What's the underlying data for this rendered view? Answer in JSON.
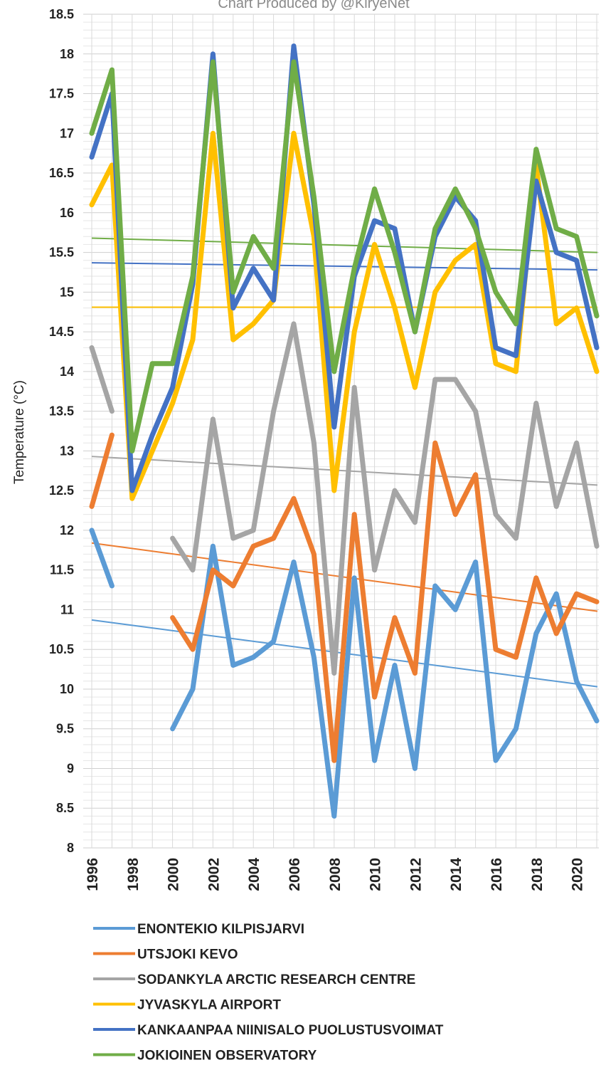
{
  "chart_data": {
    "type": "line",
    "title": "Chart Produced by @KiryeNet",
    "ylabel": "Temperature (°C)",
    "xlabel": "",
    "ylim": [
      8,
      18.5
    ],
    "y_ticks": [
      "8",
      "8.5",
      "9",
      "9.5",
      "10",
      "10.5",
      "11",
      "11.5",
      "12",
      "12.5",
      "13",
      "13.5",
      "14",
      "14.5",
      "15",
      "15.5",
      "16",
      "16.5",
      "17",
      "17.5",
      "18",
      "18.5"
    ],
    "x_tick_labels": [
      "1996",
      "1998",
      "2000",
      "2002",
      "2004",
      "2006",
      "2008",
      "2010",
      "2012",
      "2014",
      "2016",
      "2018",
      "2020"
    ],
    "x": [
      1996,
      1997,
      1998,
      1999,
      2000,
      2001,
      2002,
      2003,
      2004,
      2005,
      2006,
      2007,
      2008,
      2009,
      2010,
      2011,
      2012,
      2013,
      2014,
      2015,
      2016,
      2017,
      2018,
      2019,
      2020,
      2021
    ],
    "grid": true,
    "legend_position": "bottom",
    "series": [
      {
        "name": "ENONTEKIO KILPISJARVI",
        "color": "#5b9bd5",
        "values": [
          12.0,
          11.3,
          null,
          null,
          9.5,
          10.0,
          11.8,
          10.3,
          10.4,
          10.6,
          11.6,
          10.4,
          8.4,
          11.4,
          9.1,
          10.3,
          9.0,
          11.3,
          11.0,
          11.6,
          9.1,
          9.5,
          10.7,
          11.2,
          10.1,
          9.6
        ],
        "trend": [
          10.87,
          10.03
        ]
      },
      {
        "name": "UTSJOKI KEVO",
        "color": "#ed7d31",
        "values": [
          12.3,
          13.2,
          null,
          null,
          10.9,
          10.5,
          11.5,
          11.3,
          11.8,
          11.9,
          12.4,
          11.7,
          9.1,
          12.2,
          9.9,
          10.9,
          10.2,
          13.1,
          12.2,
          12.7,
          10.5,
          10.4,
          11.4,
          10.7,
          11.2,
          11.1
        ],
        "trend": [
          11.84,
          10.98
        ]
      },
      {
        "name": "SODANKYLA ARCTIC RESEARCH CENTRE",
        "color": "#a5a5a5",
        "values": [
          14.3,
          13.5,
          null,
          null,
          11.9,
          11.5,
          13.4,
          11.9,
          12.0,
          13.5,
          14.6,
          13.1,
          10.2,
          13.8,
          11.5,
          12.5,
          12.1,
          13.9,
          13.9,
          13.5,
          12.2,
          11.9,
          13.6,
          12.3,
          13.1,
          11.8
        ],
        "trend": [
          12.93,
          12.57
        ]
      },
      {
        "name": "JYVASKYLA AIRPORT",
        "color": "#ffc000",
        "values": [
          16.1,
          16.6,
          12.4,
          13.0,
          13.6,
          14.4,
          17.0,
          14.4,
          14.6,
          14.9,
          17.0,
          15.7,
          12.5,
          14.5,
          15.6,
          14.8,
          13.8,
          15.0,
          15.4,
          15.6,
          14.1,
          14.0,
          16.6,
          14.6,
          14.8,
          14.0
        ],
        "trend": [
          14.81,
          14.81
        ]
      },
      {
        "name": "KANKAANPAA NIINISALO PUOLUSTUSVOIMAT",
        "color": "#4472c4",
        "values": [
          16.7,
          17.5,
          12.5,
          13.2,
          13.8,
          15.1,
          18.0,
          14.8,
          15.3,
          14.9,
          18.1,
          16.1,
          13.3,
          15.2,
          15.9,
          15.8,
          14.5,
          15.7,
          16.2,
          15.9,
          14.3,
          14.2,
          16.4,
          15.5,
          15.4,
          14.3
        ],
        "trend": [
          15.37,
          15.28
        ]
      },
      {
        "name": "JOKIOINEN OBSERVATORY",
        "color": "#70ad47",
        "values": [
          17.0,
          17.8,
          13.0,
          14.1,
          14.1,
          15.2,
          17.9,
          15.0,
          15.7,
          15.3,
          17.9,
          16.2,
          14.0,
          15.3,
          16.3,
          15.5,
          14.5,
          15.8,
          16.3,
          15.8,
          15.0,
          14.6,
          16.8,
          15.8,
          15.7,
          14.7
        ],
        "trend": [
          15.68,
          15.5
        ]
      }
    ]
  }
}
